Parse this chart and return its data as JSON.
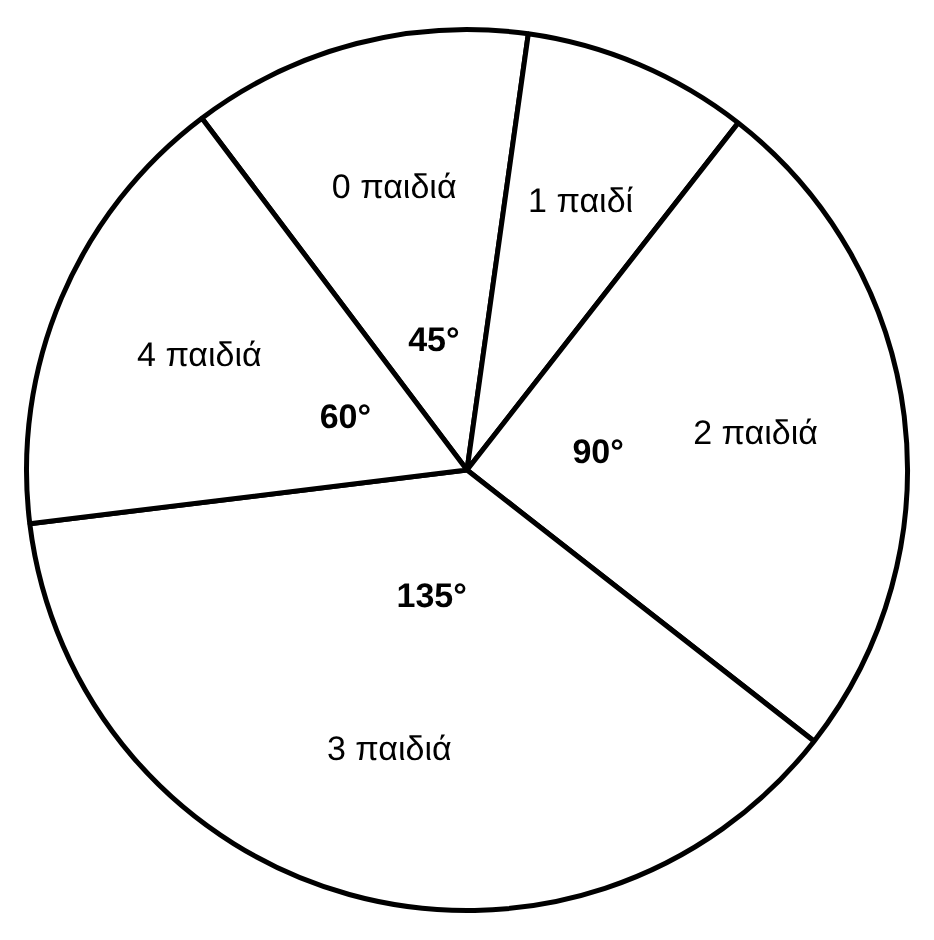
{
  "chart_data": {
    "type": "pie",
    "categories": [
      "0 παιδιά",
      "1 παιδί",
      "2 παιδιά",
      "3 παιδιά",
      "4 παιδιά"
    ],
    "values": [
      45,
      30,
      90,
      135,
      60
    ],
    "value_labels": [
      "45°",
      null,
      "90°",
      "135°",
      "60°"
    ],
    "colors": [
      "#ffffff",
      "#ffffff",
      "#ffffff",
      "#ffffff",
      "#ffffff"
    ],
    "legend": false
  }
}
